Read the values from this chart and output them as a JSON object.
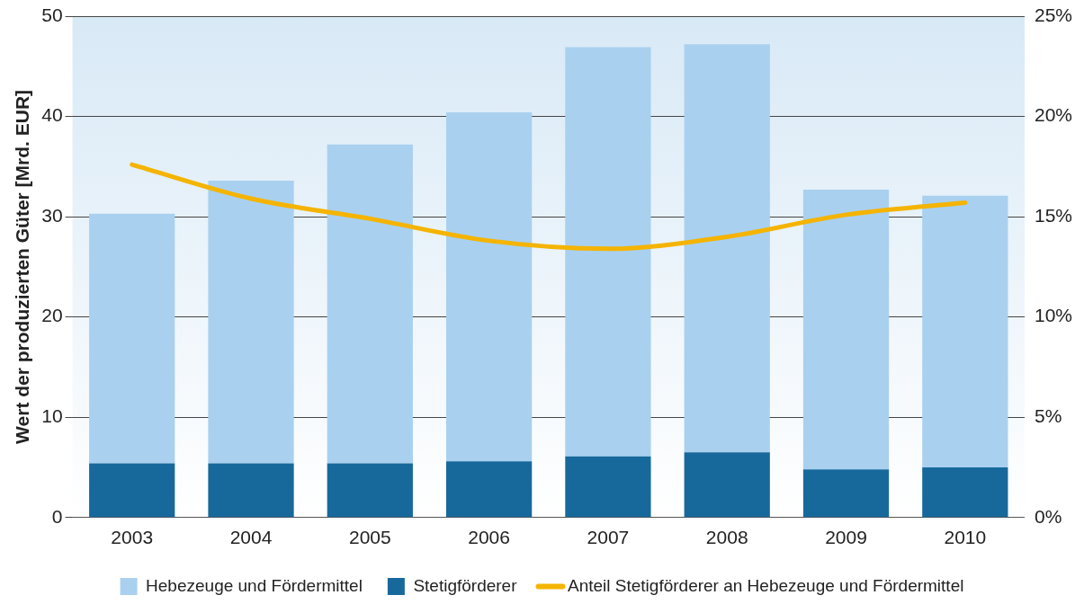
{
  "chart_data": {
    "type": "bar",
    "ylabel": "Wert der produzierten Güter [Mrd. EUR]",
    "categories": [
      "2003",
      "2004",
      "2005",
      "2006",
      "2007",
      "2008",
      "2009",
      "2010"
    ],
    "stacked": true,
    "ylim": [
      0,
      50
    ],
    "yticks": [
      0,
      10,
      20,
      30,
      40,
      50
    ],
    "y2lim": [
      0,
      25
    ],
    "y2ticks": [
      {
        "value": 0,
        "label": "0%"
      },
      {
        "value": 5,
        "label": "5%"
      },
      {
        "value": 10,
        "label": "10%"
      },
      {
        "value": 15,
        "label": "15%"
      },
      {
        "value": 20,
        "label": "20%"
      },
      {
        "value": 25,
        "label": "25%"
      }
    ],
    "grid": "y",
    "legend": "bottom",
    "series": [
      {
        "name": "Stetigförderer",
        "color": "#17699c",
        "values": [
          5.4,
          5.4,
          5.4,
          5.6,
          6.1,
          6.5,
          4.8,
          5.0
        ]
      },
      {
        "name": "Hebezeuge und Fördermittel",
        "color": "#a9d0ef",
        "values": [
          24.9,
          28.2,
          31.8,
          34.8,
          40.8,
          40.7,
          27.9,
          27.1
        ]
      },
      {
        "name": "Anteil Stetigförderer an Hebezeuge und Fördermittel",
        "type": "line",
        "axis": "y2",
        "color": "#f4b400",
        "values": [
          17.6,
          15.9,
          14.9,
          13.8,
          13.4,
          14.0,
          15.1,
          15.7
        ]
      }
    ]
  }
}
